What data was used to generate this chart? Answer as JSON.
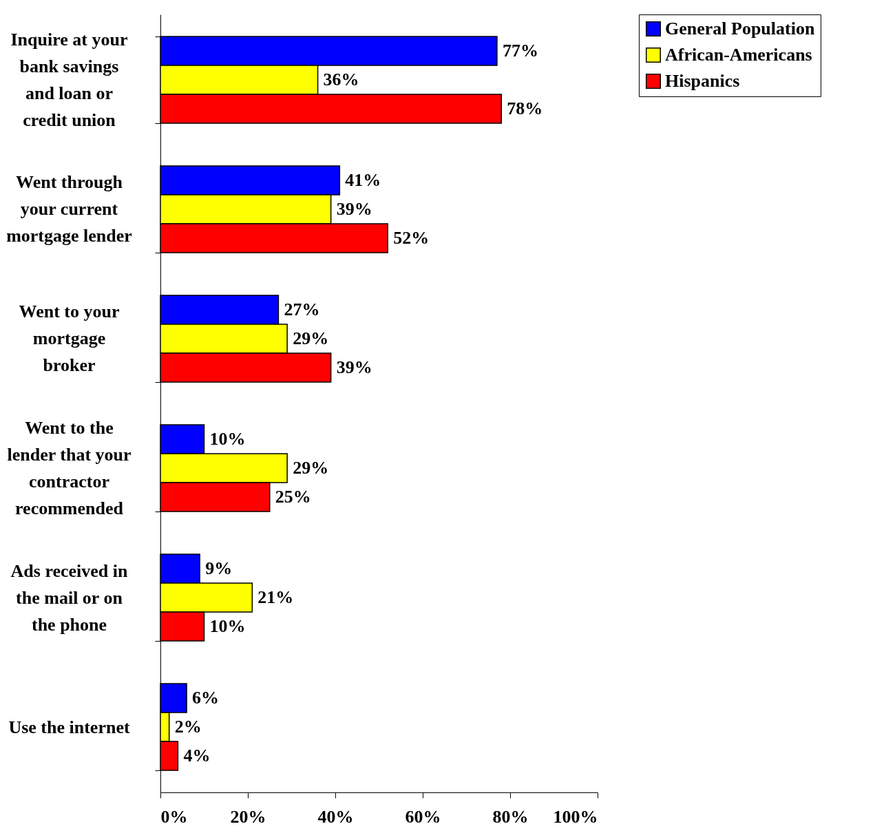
{
  "chart_data": {
    "type": "bar",
    "orientation": "horizontal",
    "categories": [
      "Inquire at your\nbank savings\nand loan or\ncredit union",
      "Went through\nyour current\nmortgage lender",
      "Went to your\nmortgage\nbroker",
      "Went to the\nlender that your\ncontractor\nrecommended",
      "Ads received in\nthe mail or on\nthe phone",
      "Use the internet"
    ],
    "series": [
      {
        "name": "General Population",
        "color": "#0000ff",
        "values": [
          77,
          41,
          27,
          10,
          9,
          6
        ],
        "value_labels": [
          "77%",
          "41%",
          "27%",
          "10%",
          "9%",
          "6%"
        ]
      },
      {
        "name": "African-Americans",
        "color": "#ffff00",
        "values": [
          36,
          39,
          29,
          29,
          21,
          2
        ],
        "value_labels": [
          "36%",
          "39%",
          "29%",
          "29%",
          "21%",
          "2%"
        ]
      },
      {
        "name": "Hispanics",
        "color": "#ff0000",
        "values": [
          78,
          52,
          39,
          25,
          10,
          4
        ],
        "value_labels": [
          "78%",
          "52%",
          "39%",
          "25%",
          "10%",
          "4%"
        ]
      }
    ],
    "xlim": [
      0,
      100
    ],
    "xticks": [
      {
        "value": 0,
        "label": "0%"
      },
      {
        "value": 20,
        "label": "20%"
      },
      {
        "value": 40,
        "label": "40%"
      },
      {
        "value": 60,
        "label": "60%"
      },
      {
        "value": 80,
        "label": "80%"
      },
      {
        "value": 100,
        "label": "100%"
      }
    ],
    "legend": "right"
  }
}
